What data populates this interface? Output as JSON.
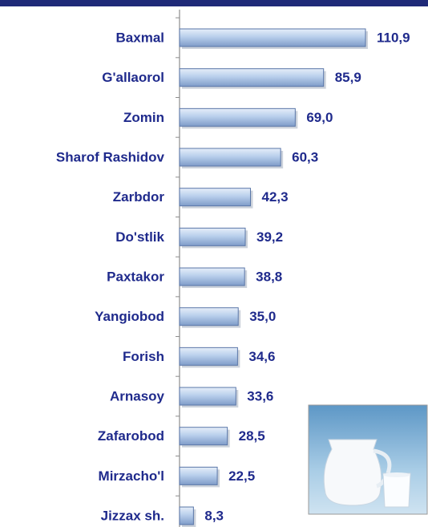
{
  "chart_data": {
    "type": "barh",
    "categories": [
      "Baxmal",
      "G'allaorol",
      "Zomin",
      "Sharof Rashidov",
      "Zarbdor",
      "Do'stlik",
      "Paxtakor",
      "Yangiobod",
      "Forish",
      "Arnasoy",
      "Zafarobod",
      "Mirzacho'l",
      "Jizzax sh."
    ],
    "values": [
      110.9,
      85.9,
      69.0,
      60.3,
      42.3,
      39.2,
      38.8,
      35.0,
      34.6,
      33.6,
      28.5,
      22.5,
      8.3
    ],
    "value_labels": [
      "110,9",
      "85,9",
      "69,0",
      "60,3",
      "42,3",
      "39,2",
      "38,8",
      "35,0",
      "34,6",
      "33,6",
      "28,5",
      "22,5",
      "8,3"
    ],
    "color": "#a9c3e4"
  }
}
